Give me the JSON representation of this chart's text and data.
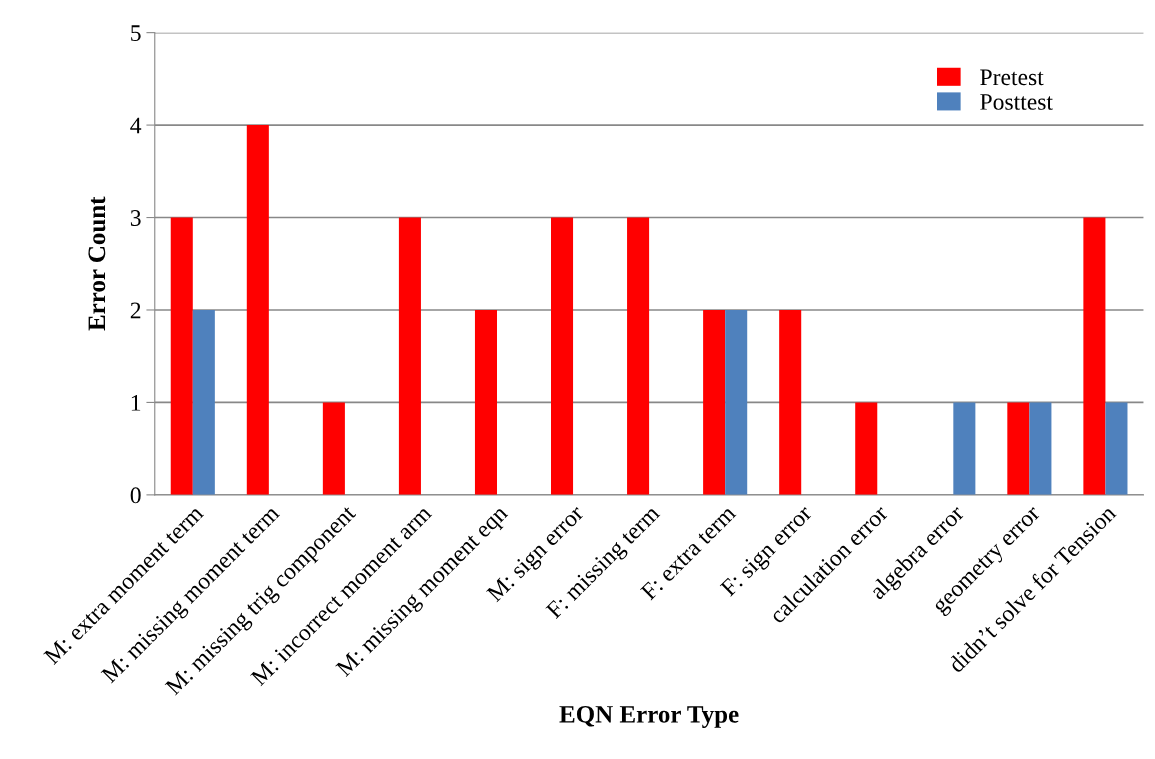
{
  "chart_data": {
    "type": "bar",
    "xlabel": "EQN Error Type",
    "ylabel": "Error Count",
    "categories": [
      "M: extra moment term",
      "M: missing moment term",
      "M: missing trig component",
      "M: incorrect moment arm",
      "M: missing moment eqn",
      "M: sign error",
      "F: missing term",
      "F: extra term",
      "F: sign error",
      "calculation error",
      "algebra error",
      "geometry error",
      "didn’t solve for Tension"
    ],
    "series": [
      {
        "name": "Pretest",
        "color": "#ff0000",
        "values": [
          3,
          4,
          1,
          3,
          2,
          3,
          3,
          2,
          2,
          1,
          0,
          1,
          3
        ]
      },
      {
        "name": "Posttest",
        "color": "#4f81bd",
        "values": [
          2,
          0,
          0,
          0,
          0,
          0,
          0,
          2,
          0,
          0,
          1,
          1,
          1
        ]
      }
    ],
    "ylim": [
      0,
      5
    ],
    "yticks": [
      0,
      1,
      2,
      3,
      4,
      5
    ],
    "grid": "y",
    "legend": "top right"
  }
}
